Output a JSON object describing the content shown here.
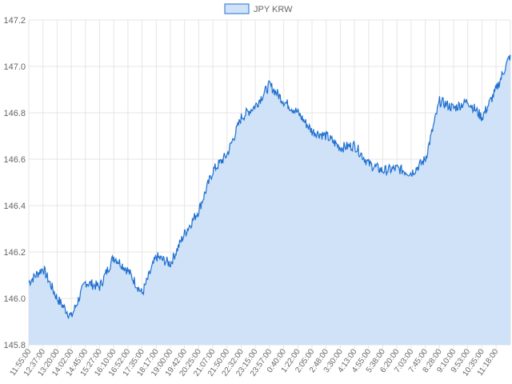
{
  "chart_data": {
    "type": "area",
    "title": "",
    "xlabel": "",
    "ylabel": "",
    "ylim": [
      145.8,
      147.2
    ],
    "yticks": [
      "147.2",
      "147.0",
      "146.8",
      "146.6",
      "146.4",
      "146.2",
      "146.0",
      "145.8"
    ],
    "grid": true,
    "legend": {
      "position": "top-center"
    },
    "colors": {
      "line": "#1f6fd0",
      "fill": "#cfe2f7",
      "grid": "#e5e5e5",
      "axis": "#cccccc"
    },
    "x_tick_labels": [
      "11:55:00",
      "12:37:00",
      "13:20:00",
      "14:02:00",
      "14:45:00",
      "15:27:00",
      "16:10:00",
      "16:52:00",
      "17:35:00",
      "18:17:00",
      "19:00:00",
      "19:42:00",
      "20:25:00",
      "21:07:00",
      "21:50:00",
      "22:32:00",
      "23:15:00",
      "23:57:00",
      "0:40:00",
      "1:22:00",
      "2:05:00",
      "2:48:00",
      "3:30:00",
      "4:13:00",
      "4:55:00",
      "5:38:00",
      "6:20:00",
      "7:03:00",
      "7:45:00",
      "8:28:00",
      "9:10:00",
      "9:53:00",
      "10:35:00",
      "11:18:00"
    ],
    "series": [
      {
        "name": "JPY KRW",
        "x": [
          "11:55:00",
          "12:37:00",
          "13:20:00",
          "14:02:00",
          "14:45:00",
          "15:27:00",
          "16:10:00",
          "16:52:00",
          "17:35:00",
          "18:17:00",
          "19:00:00",
          "19:42:00",
          "20:25:00",
          "21:07:00",
          "21:50:00",
          "22:32:00",
          "23:15:00",
          "23:57:00",
          "0:40:00",
          "1:22:00",
          "2:05:00",
          "2:48:00",
          "3:30:00",
          "4:13:00",
          "4:55:00",
          "5:38:00",
          "6:20:00",
          "7:03:00",
          "7:45:00",
          "8:28:00",
          "9:10:00",
          "9:53:00",
          "10:35:00",
          "11:18:00",
          "12:00:00"
        ],
        "values": [
          146.07,
          146.13,
          146.0,
          145.92,
          146.07,
          146.05,
          146.18,
          146.12,
          146.02,
          146.18,
          146.15,
          146.28,
          146.38,
          146.55,
          146.62,
          146.78,
          146.83,
          146.92,
          146.85,
          146.8,
          146.72,
          146.7,
          146.65,
          146.66,
          146.58,
          146.55,
          146.56,
          146.54,
          146.6,
          146.85,
          146.82,
          146.85,
          146.78,
          146.9,
          147.05
        ]
      }
    ]
  }
}
